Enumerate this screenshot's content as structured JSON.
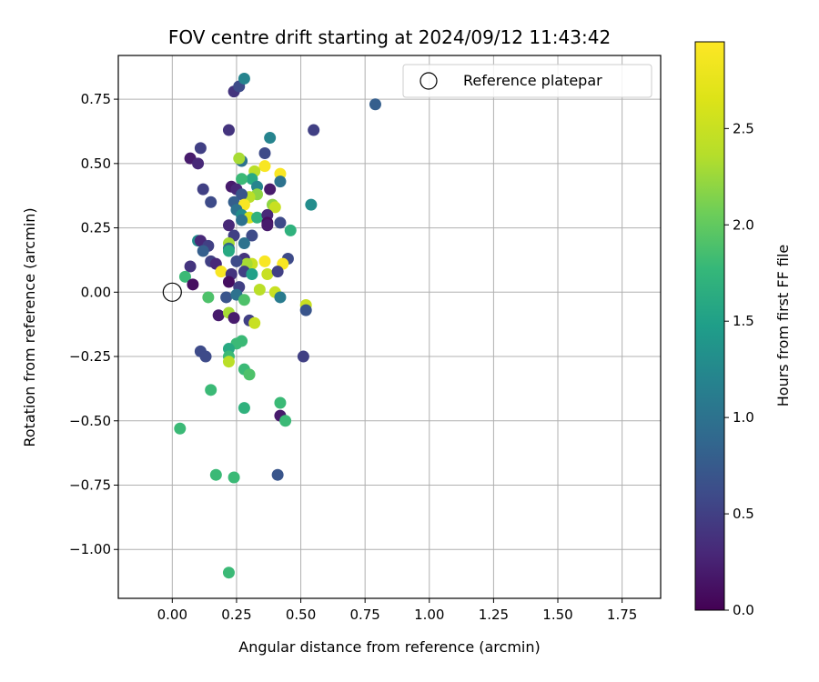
{
  "chart_data": {
    "type": "scatter",
    "title": "FOV centre drift starting at 2024/09/12 11:43:42",
    "xlabel": "Angular distance from reference (arcmin)",
    "ylabel": "Rotation from reference (arcmin)",
    "xlim": [
      -0.21,
      1.9
    ],
    "ylim": [
      -1.19,
      0.92
    ],
    "x_ticks": [
      0.0,
      0.25,
      0.5,
      0.75,
      1.0,
      1.25,
      1.5,
      1.75
    ],
    "x_tick_labels": [
      "0.00",
      "0.25",
      "0.50",
      "0.75",
      "1.00",
      "1.25",
      "1.50",
      "1.75"
    ],
    "y_ticks": [
      0.75,
      0.5,
      0.25,
      0.0,
      -0.25,
      -0.5,
      -0.75,
      -1.0
    ],
    "y_tick_labels": [
      "0.75",
      "0.50",
      "0.25",
      "0.00",
      "−0.25",
      "−0.50",
      "−0.75",
      "−1.00"
    ],
    "grid": true,
    "legend": {
      "placement": "top-right",
      "entries": [
        "Reference platepar"
      ]
    },
    "reference_point": {
      "x": 0.0,
      "y": 0.0
    },
    "colorbar": {
      "label": "Hours from first FF file",
      "colormap": "viridis",
      "range": [
        0.0,
        2.95
      ],
      "ticks": [
        0.0,
        0.5,
        1.0,
        1.5,
        2.0,
        2.5
      ],
      "tick_labels": [
        "0.0",
        "0.5",
        "1.0",
        "1.5",
        "2.0",
        "2.5"
      ]
    },
    "points": [
      {
        "x": 0.24,
        "y": 0.78,
        "h": 0.4
      },
      {
        "x": 0.26,
        "y": 0.8,
        "h": 0.6
      },
      {
        "x": 0.28,
        "y": 0.83,
        "h": 1.2
      },
      {
        "x": 0.79,
        "y": 0.73,
        "h": 0.8
      },
      {
        "x": 0.22,
        "y": 0.63,
        "h": 0.4
      },
      {
        "x": 0.55,
        "y": 0.63,
        "h": 0.5
      },
      {
        "x": 0.38,
        "y": 0.6,
        "h": 1.2
      },
      {
        "x": 0.11,
        "y": 0.56,
        "h": 0.5
      },
      {
        "x": 0.36,
        "y": 0.54,
        "h": 0.6
      },
      {
        "x": 0.07,
        "y": 0.52,
        "h": 0.2
      },
      {
        "x": 0.1,
        "y": 0.5,
        "h": 0.3
      },
      {
        "x": 0.27,
        "y": 0.51,
        "h": 1.0
      },
      {
        "x": 0.26,
        "y": 0.52,
        "h": 2.3
      },
      {
        "x": 0.36,
        "y": 0.49,
        "h": 2.9
      },
      {
        "x": 0.42,
        "y": 0.46,
        "h": 2.9
      },
      {
        "x": 0.32,
        "y": 0.47,
        "h": 2.4
      },
      {
        "x": 0.31,
        "y": 0.44,
        "h": 1.6
      },
      {
        "x": 0.27,
        "y": 0.44,
        "h": 1.8
      },
      {
        "x": 0.42,
        "y": 0.43,
        "h": 1.0
      },
      {
        "x": 0.23,
        "y": 0.41,
        "h": 0.2
      },
      {
        "x": 0.25,
        "y": 0.4,
        "h": 0.3
      },
      {
        "x": 0.12,
        "y": 0.4,
        "h": 0.5
      },
      {
        "x": 0.38,
        "y": 0.4,
        "h": 0.2
      },
      {
        "x": 0.33,
        "y": 0.41,
        "h": 1.2
      },
      {
        "x": 0.33,
        "y": 0.38,
        "h": 2.2
      },
      {
        "x": 0.3,
        "y": 0.37,
        "h": 2.4
      },
      {
        "x": 0.27,
        "y": 0.38,
        "h": 0.7
      },
      {
        "x": 0.54,
        "y": 0.34,
        "h": 1.3
      },
      {
        "x": 0.15,
        "y": 0.35,
        "h": 0.6
      },
      {
        "x": 0.24,
        "y": 0.35,
        "h": 0.8
      },
      {
        "x": 0.28,
        "y": 0.34,
        "h": 2.9
      },
      {
        "x": 0.39,
        "y": 0.34,
        "h": 2.2
      },
      {
        "x": 0.4,
        "y": 0.33,
        "h": 2.5
      },
      {
        "x": 0.25,
        "y": 0.32,
        "h": 1.0
      },
      {
        "x": 0.27,
        "y": 0.3,
        "h": 1.3
      },
      {
        "x": 0.3,
        "y": 0.29,
        "h": 2.6
      },
      {
        "x": 0.33,
        "y": 0.29,
        "h": 1.7
      },
      {
        "x": 0.37,
        "y": 0.3,
        "h": 0.3
      },
      {
        "x": 0.37,
        "y": 0.27,
        "h": 0.1
      },
      {
        "x": 0.42,
        "y": 0.27,
        "h": 0.6
      },
      {
        "x": 0.27,
        "y": 0.28,
        "h": 1.0
      },
      {
        "x": 0.37,
        "y": 0.26,
        "h": 0.2
      },
      {
        "x": 0.46,
        "y": 0.24,
        "h": 1.7
      },
      {
        "x": 0.22,
        "y": 0.26,
        "h": 0.3
      },
      {
        "x": 0.24,
        "y": 0.22,
        "h": 0.5
      },
      {
        "x": 0.31,
        "y": 0.22,
        "h": 0.6
      },
      {
        "x": 0.22,
        "y": 0.19,
        "h": 2.3
      },
      {
        "x": 0.28,
        "y": 0.19,
        "h": 1.0
      },
      {
        "x": 0.22,
        "y": 0.17,
        "h": 0.9
      },
      {
        "x": 0.1,
        "y": 0.2,
        "h": 1.3
      },
      {
        "x": 0.11,
        "y": 0.2,
        "h": 0.3
      },
      {
        "x": 0.14,
        "y": 0.18,
        "h": 0.5
      },
      {
        "x": 0.12,
        "y": 0.16,
        "h": 0.8
      },
      {
        "x": 0.22,
        "y": 0.16,
        "h": 1.6
      },
      {
        "x": 0.45,
        "y": 0.13,
        "h": 0.6
      },
      {
        "x": 0.28,
        "y": 0.13,
        "h": 0.4
      },
      {
        "x": 0.31,
        "y": 0.11,
        "h": 2.5
      },
      {
        "x": 0.36,
        "y": 0.12,
        "h": 2.9
      },
      {
        "x": 0.43,
        "y": 0.11,
        "h": 2.9
      },
      {
        "x": 0.29,
        "y": 0.11,
        "h": 2.3
      },
      {
        "x": 0.25,
        "y": 0.12,
        "h": 0.6
      },
      {
        "x": 0.15,
        "y": 0.12,
        "h": 0.5
      },
      {
        "x": 0.17,
        "y": 0.11,
        "h": 0.3
      },
      {
        "x": 0.07,
        "y": 0.1,
        "h": 0.4
      },
      {
        "x": 0.19,
        "y": 0.08,
        "h": 2.9
      },
      {
        "x": 0.23,
        "y": 0.07,
        "h": 0.4
      },
      {
        "x": 0.28,
        "y": 0.08,
        "h": 0.5
      },
      {
        "x": 0.31,
        "y": 0.07,
        "h": 1.5
      },
      {
        "x": 0.37,
        "y": 0.07,
        "h": 2.5
      },
      {
        "x": 0.41,
        "y": 0.08,
        "h": 0.5
      },
      {
        "x": 0.05,
        "y": 0.06,
        "h": 1.8
      },
      {
        "x": 0.22,
        "y": 0.04,
        "h": 0.1
      },
      {
        "x": 0.08,
        "y": 0.03,
        "h": 0.1
      },
      {
        "x": 0.26,
        "y": 0.02,
        "h": 0.5
      },
      {
        "x": 0.34,
        "y": 0.01,
        "h": 2.4
      },
      {
        "x": 0.4,
        "y": 0.0,
        "h": 2.5
      },
      {
        "x": 0.42,
        "y": -0.02,
        "h": 1.1
      },
      {
        "x": 0.21,
        "y": -0.02,
        "h": 0.7
      },
      {
        "x": 0.25,
        "y": -0.01,
        "h": 1.0
      },
      {
        "x": 0.14,
        "y": -0.02,
        "h": 1.9
      },
      {
        "x": 0.28,
        "y": -0.03,
        "h": 1.9
      },
      {
        "x": 0.52,
        "y": -0.05,
        "h": 2.5
      },
      {
        "x": 0.52,
        "y": -0.07,
        "h": 0.7
      },
      {
        "x": 0.18,
        "y": -0.09,
        "h": 0.2
      },
      {
        "x": 0.22,
        "y": -0.08,
        "h": 2.3
      },
      {
        "x": 0.24,
        "y": -0.1,
        "h": 0.2
      },
      {
        "x": 0.3,
        "y": -0.11,
        "h": 0.5
      },
      {
        "x": 0.32,
        "y": -0.12,
        "h": 2.5
      },
      {
        "x": 0.27,
        "y": -0.19,
        "h": 1.8
      },
      {
        "x": 0.25,
        "y": -0.2,
        "h": 1.8
      },
      {
        "x": 0.22,
        "y": -0.22,
        "h": 1.6
      },
      {
        "x": 0.22,
        "y": -0.25,
        "h": 1.8
      },
      {
        "x": 0.11,
        "y": -0.23,
        "h": 0.6
      },
      {
        "x": 0.13,
        "y": -0.25,
        "h": 0.6
      },
      {
        "x": 0.51,
        "y": -0.25,
        "h": 0.5
      },
      {
        "x": 0.22,
        "y": -0.27,
        "h": 2.4
      },
      {
        "x": 0.28,
        "y": -0.3,
        "h": 1.8
      },
      {
        "x": 0.3,
        "y": -0.32,
        "h": 1.9
      },
      {
        "x": 0.15,
        "y": -0.38,
        "h": 1.8
      },
      {
        "x": 0.42,
        "y": -0.43,
        "h": 1.8
      },
      {
        "x": 0.28,
        "y": -0.45,
        "h": 1.7
      },
      {
        "x": 0.42,
        "y": -0.48,
        "h": 0.2
      },
      {
        "x": 0.44,
        "y": -0.5,
        "h": 1.8
      },
      {
        "x": 0.03,
        "y": -0.53,
        "h": 1.8
      },
      {
        "x": 0.41,
        "y": -0.71,
        "h": 0.7
      },
      {
        "x": 0.17,
        "y": -0.71,
        "h": 1.8
      },
      {
        "x": 0.24,
        "y": -0.72,
        "h": 1.8
      },
      {
        "x": 0.22,
        "y": -1.09,
        "h": 1.8
      }
    ]
  }
}
